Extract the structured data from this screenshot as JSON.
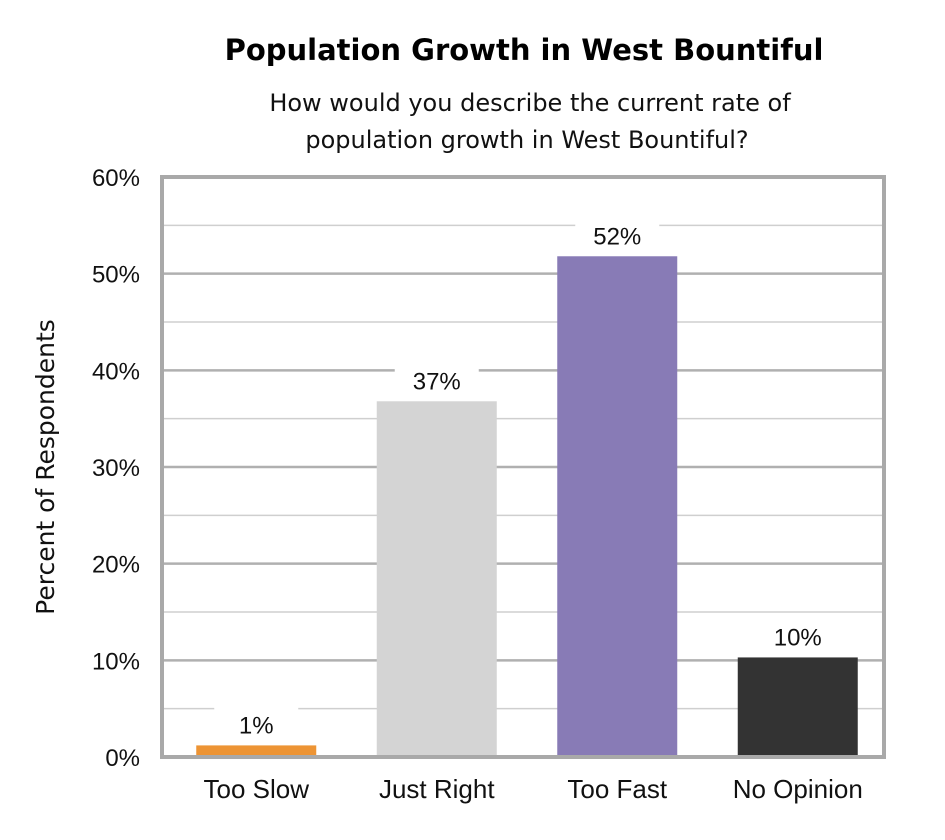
{
  "chart_data": {
    "type": "bar",
    "title": "Population Growth in West Bountiful",
    "subtitle": [
      "How would you describe the current rate of",
      "population growth in West Bountiful?"
    ],
    "xlabel": "",
    "ylabel": "Percent of Respondents",
    "ylim": [
      0,
      60
    ],
    "yticks": [
      "0%",
      "10%",
      "20%",
      "30%",
      "40%",
      "50%",
      "60%"
    ],
    "grid": true,
    "categories": [
      "Too Slow",
      "Just Right",
      "Too Fast",
      "No Opinion"
    ],
    "values": [
      1.2,
      36.8,
      51.8,
      10.3
    ],
    "data_labels": [
      "1%",
      "37%",
      "52%",
      "10%"
    ],
    "colors": [
      "#ED9434",
      "#D4D4D4",
      "#887BB6",
      "#333333"
    ]
  }
}
